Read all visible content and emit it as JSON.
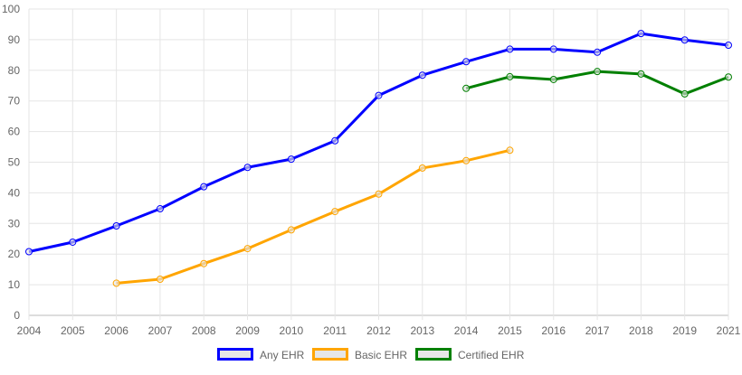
{
  "chart_data": {
    "type": "line",
    "title": "",
    "xlabel": "",
    "ylabel": "",
    "categories": [
      "2004",
      "2005",
      "2006",
      "2007",
      "2008",
      "2009",
      "2010",
      "2011",
      "2012",
      "2013",
      "2014",
      "2015",
      "2016",
      "2017",
      "2018",
      "2019",
      "2021"
    ],
    "ylim": [
      0,
      100
    ],
    "yticks": [
      0,
      10,
      20,
      30,
      40,
      50,
      60,
      70,
      80,
      90,
      100
    ],
    "grid": true,
    "legend_position": "bottom",
    "series": [
      {
        "name": "Any EHR",
        "color": "#0000ff",
        "values": [
          20.8,
          23.9,
          29.2,
          34.8,
          42.0,
          48.3,
          51.0,
          57.0,
          71.8,
          78.4,
          82.8,
          86.9,
          86.9,
          85.9,
          92.0,
          89.9,
          88.2
        ]
      },
      {
        "name": "Basic EHR",
        "color": "#ffa500",
        "values": [
          null,
          null,
          10.5,
          11.8,
          16.9,
          21.8,
          27.9,
          33.9,
          39.6,
          48.1,
          50.5,
          53.9,
          null,
          null,
          null,
          null,
          null
        ]
      },
      {
        "name": "Certified EHR",
        "color": "#008000",
        "values": [
          null,
          null,
          null,
          null,
          null,
          null,
          null,
          null,
          null,
          null,
          74.1,
          77.9,
          77.0,
          79.6,
          78.8,
          72.3,
          77.8
        ]
      }
    ]
  }
}
